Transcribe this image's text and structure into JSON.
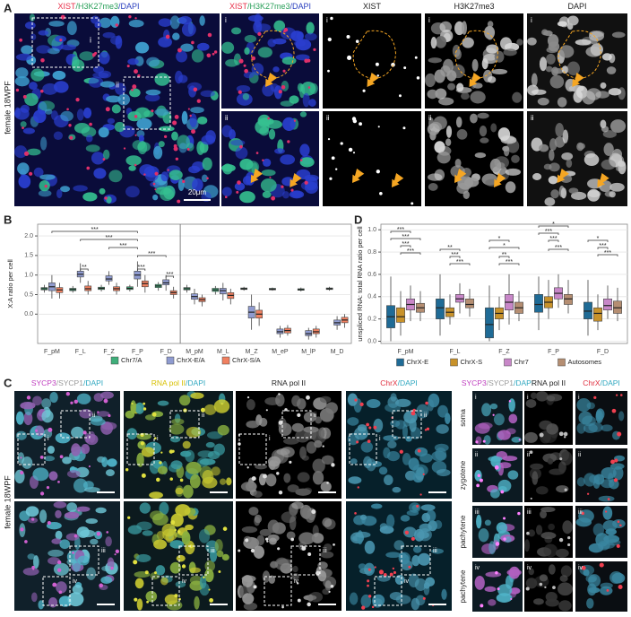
{
  "panel_a": {
    "label": "A",
    "row_title": "female 18WPF",
    "scale_bar": "20μm",
    "rows": [
      "i",
      "ii"
    ],
    "overview_title": [
      {
        "text": "XIST",
        "color": "#e8304a"
      },
      {
        "text": "/H3K27me3",
        "color": "#2aa05a"
      },
      {
        "text": "/DAPI",
        "color": "#2a3fbf"
      }
    ],
    "column_titles": [
      [
        {
          "text": "XIST",
          "color": "#e8304a"
        },
        {
          "text": "/H3K27me3",
          "color": "#2aa05a"
        },
        {
          "text": "/DAPI",
          "color": "#2a3fbf"
        }
      ],
      [
        {
          "text": "XIST",
          "color": "#222222"
        }
      ],
      [
        {
          "text": "H3K27me3",
          "color": "#222222"
        }
      ],
      [
        {
          "text": "DAPI",
          "color": "#222222"
        }
      ]
    ]
  },
  "panel_c": {
    "label": "C",
    "row_title": "female 18WPF",
    "rows": [
      "i",
      "ii",
      "iii",
      "iv"
    ],
    "stages": [
      "soma",
      "zygotene",
      "pachytene",
      "pachytene"
    ],
    "column_titles": [
      [
        {
          "text": "SYCP3",
          "color": "#c040c0"
        },
        {
          "text": "/SYCP1",
          "color": "#9a9a9a"
        },
        {
          "text": "/DAPI",
          "color": "#30a8c0"
        }
      ],
      [
        {
          "text": "RNA pol II",
          "color": "#d8c000"
        },
        {
          "text": "/DAPI",
          "color": "#30a8c0"
        }
      ],
      [
        {
          "text": "RNA pol II",
          "color": "#222222"
        }
      ],
      [
        {
          "text": "ChrX",
          "color": "#e03040"
        },
        {
          "text": "/DAPI",
          "color": "#30a8c0"
        }
      ]
    ],
    "detail_titles": [
      [
        {
          "text": "SYCP3",
          "color": "#c040c0"
        },
        {
          "text": "/SYCP1",
          "color": "#9a9a9a"
        },
        {
          "text": "/DAPI",
          "color": "#30a8c0"
        }
      ],
      [
        {
          "text": "RNA pol II",
          "color": "#222222"
        }
      ],
      [
        {
          "text": "ChrX",
          "color": "#e03040"
        },
        {
          "text": "/DAPI",
          "color": "#30a8c0"
        }
      ]
    ]
  },
  "chart_data": [
    {
      "type": "box",
      "panel": "B",
      "ylabel": "X:A ratio per cell",
      "categories": [
        "F_pM",
        "F_L",
        "F_Z",
        "F_P",
        "F_D",
        "M_pM",
        "M_L",
        "M_Z",
        "M_eP",
        "M_lP",
        "M_D"
      ],
      "ylim": [
        -0.75,
        2.3
      ],
      "yticks": [
        {
          "value": 0,
          "label": "0.0"
        },
        {
          "value": 0.5,
          "label": "0.5"
        },
        {
          "value": 1,
          "label": "1.0"
        },
        {
          "value": 1.5,
          "label": "1.5"
        },
        {
          "value": 2,
          "label": "2.0"
        }
      ],
      "grid": true,
      "legend": "bottom",
      "annotations": [
        "***",
        "***",
        "***",
        "***",
        "**",
        "***",
        "***"
      ],
      "series": [
        {
          "name": "Chr7/A",
          "color": "#3fae7a",
          "values": [
            [
              0.55,
              0.62,
              0.65,
              0.68,
              0.75
            ],
            [
              0.55,
              0.6,
              0.63,
              0.66,
              0.72
            ],
            [
              0.58,
              0.63,
              0.66,
              0.69,
              0.75
            ],
            [
              0.58,
              0.63,
              0.66,
              0.7,
              0.75
            ],
            [
              0.6,
              0.68,
              0.72,
              0.76,
              0.82
            ],
            [
              0.55,
              0.62,
              0.65,
              0.68,
              0.75
            ],
            [
              0.5,
              0.58,
              0.62,
              0.66,
              0.72
            ],
            [
              0.6,
              0.63,
              0.65,
              0.67,
              0.7
            ],
            [
              0.6,
              0.62,
              0.64,
              0.66,
              0.68
            ],
            [
              0.58,
              0.61,
              0.63,
              0.65,
              0.68
            ],
            [
              0.6,
              0.63,
              0.65,
              0.67,
              0.7
            ]
          ]
        },
        {
          "name": "ChrX-E/A",
          "color": "#8f9bd0",
          "values": [
            [
              0.4,
              0.6,
              0.7,
              0.8,
              1.0
            ],
            [
              0.8,
              0.95,
              1.02,
              1.1,
              1.3
            ],
            [
              0.75,
              0.85,
              0.9,
              0.98,
              1.1
            ],
            [
              0.7,
              0.9,
              1.0,
              1.1,
              1.35
            ],
            [
              0.6,
              0.75,
              0.8,
              0.88,
              1.0
            ],
            [
              0.25,
              0.38,
              0.45,
              0.52,
              0.65
            ],
            [
              0.35,
              0.52,
              0.6,
              0.66,
              0.8
            ],
            [
              -0.4,
              -0.1,
              0.05,
              0.2,
              0.5
            ],
            [
              -0.6,
              -0.5,
              -0.45,
              -0.38,
              -0.3
            ],
            [
              -0.65,
              -0.55,
              -0.5,
              -0.42,
              -0.35
            ],
            [
              -0.4,
              -0.28,
              -0.22,
              -0.15,
              -0.05
            ]
          ]
        },
        {
          "name": "ChrX-S/A",
          "color": "#f08060",
          "values": [
            [
              0.4,
              0.55,
              0.62,
              0.68,
              0.8
            ],
            [
              0.5,
              0.6,
              0.65,
              0.72,
              0.85
            ],
            [
              0.5,
              0.6,
              0.65,
              0.7,
              0.8
            ],
            [
              0.55,
              0.7,
              0.78,
              0.85,
              1.0
            ],
            [
              0.4,
              0.5,
              0.55,
              0.6,
              0.7
            ],
            [
              0.2,
              0.32,
              0.37,
              0.42,
              0.5
            ],
            [
              0.25,
              0.4,
              0.48,
              0.55,
              0.65
            ],
            [
              -0.3,
              -0.1,
              0.0,
              0.1,
              0.3
            ],
            [
              -0.55,
              -0.48,
              -0.42,
              -0.36,
              -0.28
            ],
            [
              -0.6,
              -0.5,
              -0.45,
              -0.38,
              -0.3
            ],
            [
              -0.35,
              -0.22,
              -0.15,
              -0.08,
              0.0
            ]
          ]
        }
      ]
    },
    {
      "type": "box",
      "panel": "D",
      "ylabel": "unspliced RNA: total RNA ratio per cell",
      "categories": [
        "F_pM",
        "F_L",
        "F_Z",
        "F_P",
        "F_D"
      ],
      "ylim": [
        -0.02,
        1.05
      ],
      "yticks": [
        {
          "value": 0,
          "label": "0.0"
        },
        0.2,
        0.4,
        0.6,
        0.8,
        {
          "value": 1,
          "label": "1.0"
        }
      ],
      "grid": true,
      "legend": "bottom",
      "annotations": [
        "***",
        "***",
        "***",
        "***",
        "**",
        "***",
        "***",
        "*",
        "*",
        "**",
        "***",
        "*",
        "***",
        "***",
        "***",
        "*",
        "***",
        "***"
      ],
      "series": [
        {
          "name": "ChrX-E",
          "color": "#1f6b96",
          "values": [
            [
              0.0,
              0.12,
              0.22,
              0.32,
              0.58
            ],
            [
              0.05,
              0.2,
              0.3,
              0.38,
              0.6
            ],
            [
              0.0,
              0.03,
              0.15,
              0.3,
              0.5
            ],
            [
              0.1,
              0.26,
              0.33,
              0.42,
              0.58
            ],
            [
              0.05,
              0.2,
              0.27,
              0.35,
              0.55
            ]
          ]
        },
        {
          "name": "ChrX-S",
          "color": "#c8922a",
          "values": [
            [
              0.05,
              0.17,
              0.22,
              0.3,
              0.45
            ],
            [
              0.15,
              0.22,
              0.26,
              0.3,
              0.42
            ],
            [
              0.1,
              0.2,
              0.25,
              0.3,
              0.4
            ],
            [
              0.2,
              0.3,
              0.35,
              0.4,
              0.55
            ],
            [
              0.1,
              0.18,
              0.25,
              0.3,
              0.42
            ]
          ]
        },
        {
          "name": "Chr7",
          "color": "#c887c8",
          "values": [
            [
              0.18,
              0.28,
              0.33,
              0.38,
              0.5
            ],
            [
              0.25,
              0.35,
              0.38,
              0.42,
              0.52
            ],
            [
              0.15,
              0.28,
              0.35,
              0.42,
              0.6
            ],
            [
              0.3,
              0.38,
              0.43,
              0.48,
              0.6
            ],
            [
              0.2,
              0.28,
              0.32,
              0.38,
              0.5
            ]
          ]
        },
        {
          "name": "Autosomes",
          "color": "#b58e72",
          "values": [
            [
              0.18,
              0.26,
              0.3,
              0.34,
              0.45
            ],
            [
              0.22,
              0.3,
              0.33,
              0.38,
              0.47
            ],
            [
              0.18,
              0.25,
              0.3,
              0.35,
              0.45
            ],
            [
              0.25,
              0.33,
              0.38,
              0.42,
              0.55
            ],
            [
              0.18,
              0.25,
              0.3,
              0.36,
              0.48
            ]
          ]
        }
      ]
    }
  ]
}
